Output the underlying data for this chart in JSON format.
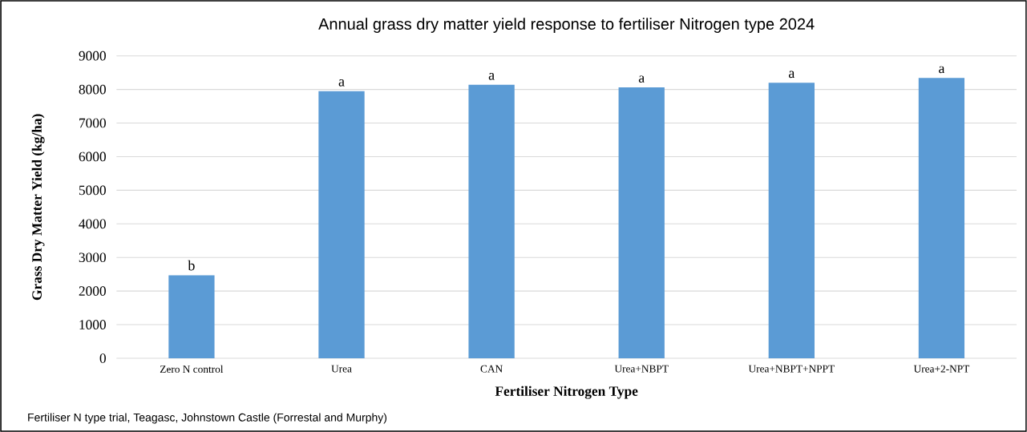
{
  "chart_data": {
    "type": "bar",
    "title": "Annual grass dry matter yield response to fertiliser Nitrogen type 2024",
    "xlabel": "Fertiliser Nitrogen Type",
    "ylabel": "Grass Dry Matter Yield (kg/ha)",
    "categories": [
      "Zero N control",
      "Urea",
      "CAN",
      "Urea+NBPT",
      "Urea+NBPT+NPPT",
      "Urea+2-NPT"
    ],
    "values": [
      2470,
      7950,
      8140,
      8060,
      8200,
      8340
    ],
    "value_labels": [
      "b",
      "a",
      "a",
      "a",
      "a",
      "a"
    ],
    "color": "#5b9bd5",
    "ylim": [
      0,
      9000
    ],
    "yticks": [
      0,
      1000,
      2000,
      3000,
      4000,
      5000,
      6000,
      7000,
      8000,
      9000
    ],
    "grid": "y",
    "annotations": [
      "Fertiliser N type trial, Teagasc, Johnstown Castle (Forrestal and Murphy)"
    ]
  }
}
